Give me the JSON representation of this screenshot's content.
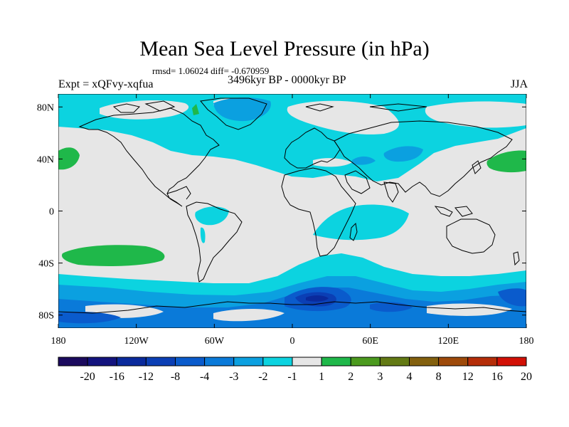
{
  "map": {
    "title": "Mean Sea Level Pressure (in hPa)",
    "rmsd_line": "rmsd= 1.06024 diff= -0.670959",
    "expt_label": "Expt = xQFvy-xqfua",
    "period_label": "3496kyr BP - 0000kyr BP",
    "season_label": "JJA",
    "lat_labels": [
      {
        "label": "80N",
        "lat": 80
      },
      {
        "label": "40N",
        "lat": 40
      },
      {
        "label": "0",
        "lat": 0
      },
      {
        "label": "40S",
        "lat": -40
      },
      {
        "label": "80S",
        "lat": -80
      }
    ],
    "lon_labels": [
      {
        "label": "180",
        "lon": -180
      },
      {
        "label": "120W",
        "lon": -120
      },
      {
        "label": "60W",
        "lon": -60
      },
      {
        "label": "0",
        "lon": 0
      },
      {
        "label": "60E",
        "lon": 60
      },
      {
        "label": "120E",
        "lon": 120
      },
      {
        "label": "180",
        "lon": 180
      }
    ]
  },
  "colorbar": {
    "colors": [
      "#1b0a5e",
      "#13137e",
      "#0a2a9c",
      "#0b3fb5",
      "#0a5bcc",
      "#0a7ad9",
      "#0ba0e0",
      "#0cd3e0",
      "#e6e6e6",
      "#1fb84a",
      "#4b9a1e",
      "#637a14",
      "#83600e",
      "#9e4a0a",
      "#b52d08",
      "#d21006"
    ],
    "labels": [
      "-20",
      "-16",
      "-12",
      "-8",
      "-4",
      "-3",
      "-2",
      "-1",
      "1",
      "2",
      "3",
      "4",
      "8",
      "12",
      "16",
      "20"
    ]
  },
  "palette": {
    "neutral": "#e6e6e6",
    "cyan": "#0cd3e0",
    "light_blue": "#0ba0e0",
    "mid_blue": "#0a7ad9",
    "blue": "#0a5bcc",
    "deep_blue": "#0b3fb5",
    "navy": "#0a2a9c",
    "green": "#1fb84a"
  }
}
